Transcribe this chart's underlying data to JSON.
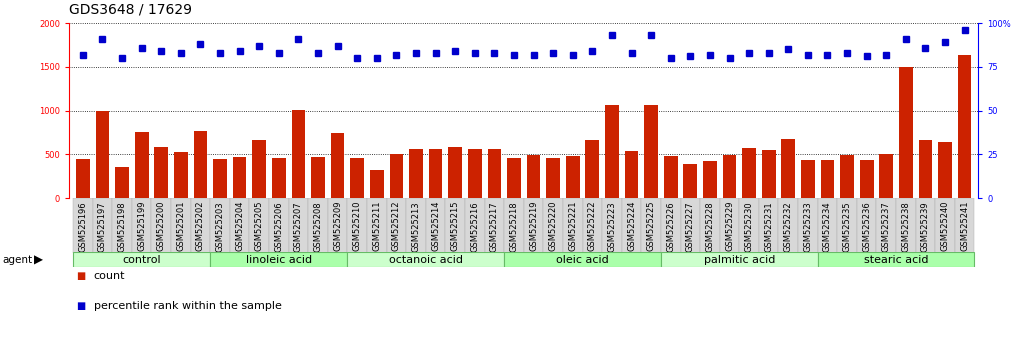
{
  "title": "GDS3648 / 17629",
  "samples": [
    "GSM525196",
    "GSM525197",
    "GSM525198",
    "GSM525199",
    "GSM525200",
    "GSM525201",
    "GSM525202",
    "GSM525203",
    "GSM525204",
    "GSM525205",
    "GSM525206",
    "GSM525207",
    "GSM525208",
    "GSM525209",
    "GSM525210",
    "GSM525211",
    "GSM525212",
    "GSM525213",
    "GSM525214",
    "GSM525215",
    "GSM525216",
    "GSM525217",
    "GSM525218",
    "GSM525219",
    "GSM525220",
    "GSM525221",
    "GSM525222",
    "GSM525223",
    "GSM525224",
    "GSM525225",
    "GSM525226",
    "GSM525227",
    "GSM525228",
    "GSM525229",
    "GSM525230",
    "GSM525231",
    "GSM525232",
    "GSM525233",
    "GSM525234",
    "GSM525235",
    "GSM525236",
    "GSM525237",
    "GSM525238",
    "GSM525239",
    "GSM525240",
    "GSM525241"
  ],
  "counts": [
    450,
    1000,
    360,
    760,
    580,
    530,
    770,
    450,
    470,
    660,
    460,
    1010,
    470,
    740,
    460,
    320,
    510,
    560,
    560,
    580,
    560,
    560,
    460,
    490,
    460,
    480,
    670,
    1060,
    540,
    1060,
    480,
    390,
    430,
    490,
    570,
    550,
    680,
    440,
    440,
    490,
    440,
    510,
    1500,
    660,
    640,
    1640
  ],
  "percentiles": [
    82,
    91,
    80,
    86,
    84,
    83,
    88,
    83,
    84,
    87,
    83,
    91,
    83,
    87,
    80,
    80,
    82,
    83,
    83,
    84,
    83,
    83,
    82,
    82,
    83,
    82,
    84,
    93,
    83,
    93,
    80,
    81,
    82,
    80,
    83,
    83,
    85,
    82,
    82,
    83,
    81,
    82,
    91,
    86,
    89,
    96
  ],
  "groups": [
    {
      "label": "control",
      "start": 0,
      "end": 6,
      "color": "#ccffcc"
    },
    {
      "label": "linoleic acid",
      "start": 7,
      "end": 13,
      "color": "#aaffaa"
    },
    {
      "label": "octanoic acid",
      "start": 14,
      "end": 21,
      "color": "#ccffcc"
    },
    {
      "label": "oleic acid",
      "start": 22,
      "end": 29,
      "color": "#aaffaa"
    },
    {
      "label": "palmitic acid",
      "start": 30,
      "end": 37,
      "color": "#ccffcc"
    },
    {
      "label": "stearic acid",
      "start": 38,
      "end": 45,
      "color": "#aaffaa"
    }
  ],
  "bar_color": "#cc2200",
  "dot_color": "#0000cc",
  "ylim_left": [
    0,
    2000
  ],
  "ylim_right": [
    0,
    100
  ],
  "yticks_left": [
    0,
    500,
    1000,
    1500,
    2000
  ],
  "yticks_right": [
    0,
    25,
    50,
    75,
    100
  ],
  "bg_color": "#ffffff",
  "title_fontsize": 10,
  "tick_fontsize": 6,
  "group_label_fontsize": 8,
  "legend_fontsize": 8
}
